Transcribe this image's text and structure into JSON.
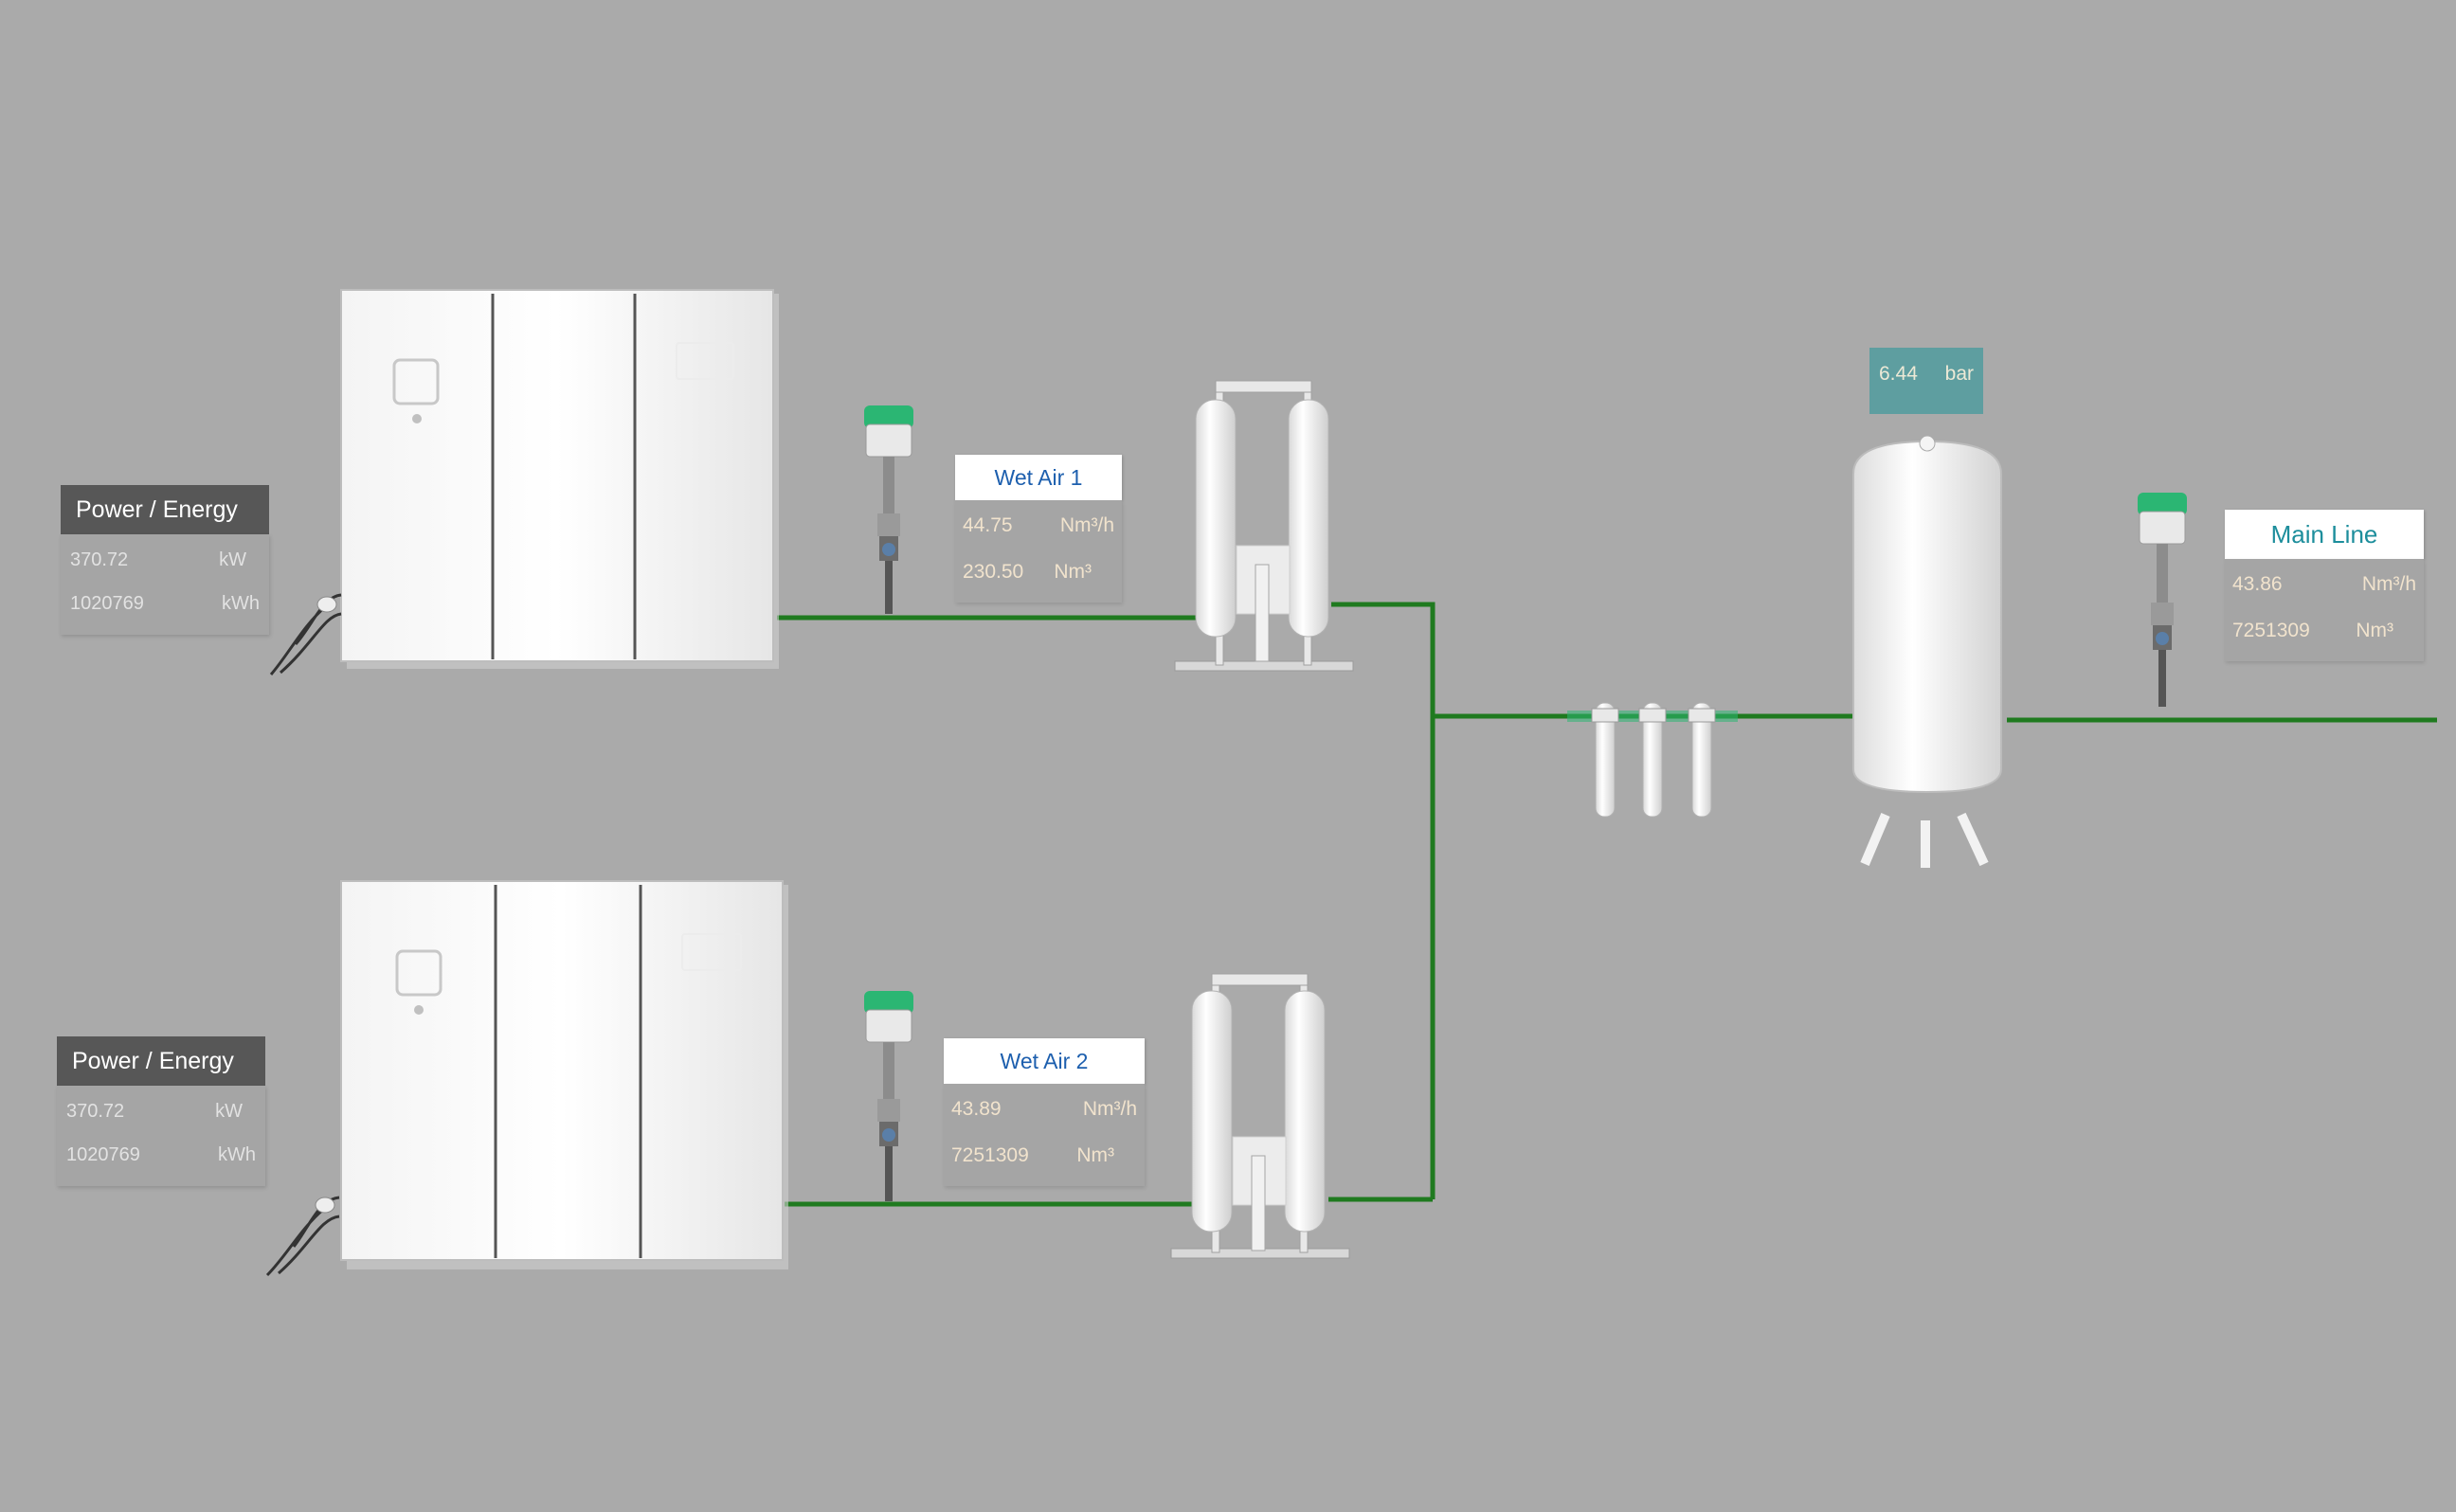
{
  "compressors": [
    {
      "panel_title": "Power / Energy",
      "power_value": "370.72",
      "power_unit": "kW",
      "energy_value": "1020769",
      "energy_unit": "kWh"
    },
    {
      "panel_title": "Power / Energy",
      "power_value": "370.72",
      "power_unit": "kW",
      "energy_value": "1020769",
      "energy_unit": "kWh"
    }
  ],
  "flow_sensors": [
    {
      "title": "Wet Air 1",
      "flow_value": "44.75",
      "flow_unit": "Nm³/h",
      "consumption_value": "230.50",
      "consumption_unit": "Nm³"
    },
    {
      "title": "Wet Air 2",
      "flow_value": "43.89",
      "flow_unit": "Nm³/h",
      "consumption_value": "7251309",
      "consumption_unit": "Nm³"
    },
    {
      "title": "Main Line",
      "flow_value": "43.86",
      "flow_unit": "Nm³/h",
      "consumption_value": "7251309",
      "consumption_unit": "Nm³"
    }
  ],
  "tank_pressure": {
    "value": "6.44",
    "unit": "bar"
  },
  "colors": {
    "background": "#aaaaaa",
    "pipe": "#1f7a1f",
    "sensor_head": "#2bb673",
    "panel_title_bg": "#575757",
    "flow_title_text": "#1d5fae",
    "main_title_text": "#1d8e9c",
    "pressure_badge_bg": "#5e9ea0"
  }
}
